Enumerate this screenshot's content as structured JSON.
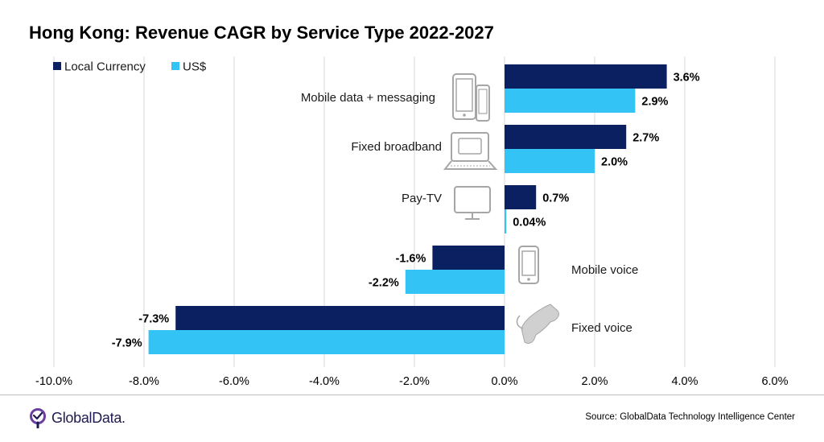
{
  "chart_data": {
    "type": "bar",
    "orientation": "horizontal",
    "title": "Hong Kong: Revenue CAGR by Service Type 2022-2027",
    "categories": [
      "Mobile data + messaging",
      "Fixed broadband",
      "Pay-TV",
      "Mobile voice",
      "Fixed voice"
    ],
    "category_icons": [
      "phone-tablet-icon",
      "laptop-icon",
      "monitor-icon",
      "mobile-phone-icon",
      "telephone-handset-icon"
    ],
    "series": [
      {
        "name": "Local Currency",
        "color": "#0b2060",
        "values": [
          3.6,
          2.7,
          0.7,
          -1.6,
          -7.3
        ],
        "labels": [
          "3.6%",
          "2.7%",
          "0.7%",
          "-1.6%",
          "-7.3%"
        ]
      },
      {
        "name": "US$",
        "color": "#33c3f5",
        "values": [
          2.9,
          2.0,
          0.04,
          -2.2,
          -7.9
        ],
        "labels": [
          "2.9%",
          "2.0%",
          "0.04%",
          "-2.2%",
          "-7.9%"
        ]
      }
    ],
    "xlim": [
      -10,
      6
    ],
    "xticks": [
      -10,
      -8,
      -6,
      -4,
      -2,
      0,
      2,
      4,
      6
    ],
    "xtick_labels": [
      "-10.0%",
      "-8.0%",
      "-6.0%",
      "-4.0%",
      "-2.0%",
      "0.0%",
      "2.0%",
      "4.0%",
      "6.0%"
    ],
    "grid": "vertical",
    "legend": "top-left",
    "xlabel": "",
    "ylabel": ""
  },
  "footer": {
    "brand": "GlobalData.",
    "source": "Source: GlobalData Technology Intelligence Center"
  },
  "colors": {
    "gridline": "#d9d9d9",
    "icon": "#a6a6a6",
    "brand": "#1f1a4f"
  }
}
